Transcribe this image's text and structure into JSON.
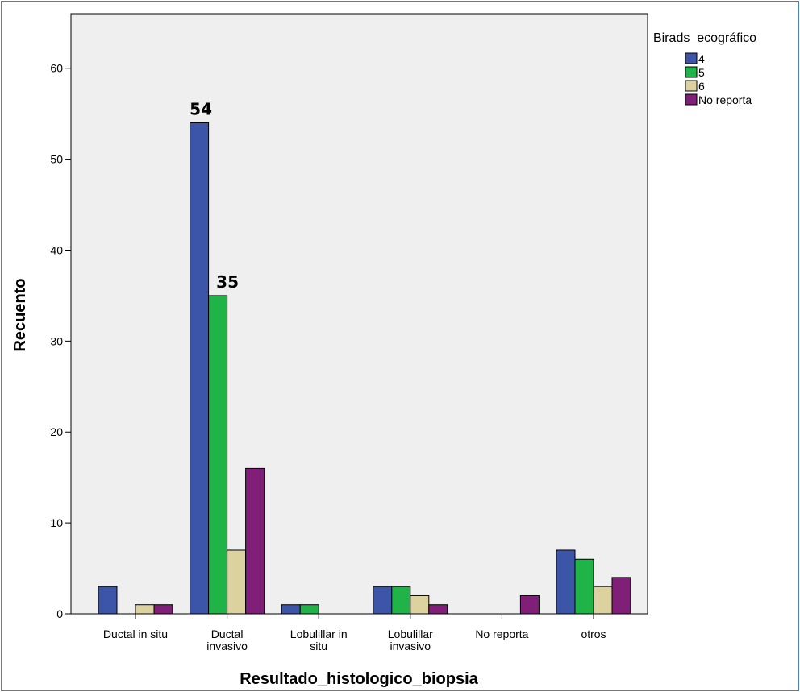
{
  "chart_data": {
    "type": "bar",
    "xlabel": "Resultado_histologico_biopsia",
    "ylabel": "Recuento",
    "ylim": [
      0,
      66
    ],
    "yticks": [
      0,
      10,
      20,
      30,
      40,
      50,
      60
    ],
    "grid": false,
    "legend": {
      "title": "Birads_ecográfico",
      "placement": "top-right"
    },
    "categories": [
      [
        "Ductal in situ"
      ],
      [
        "Ductal",
        "invasivo"
      ],
      [
        "Lobulillar in",
        "situ"
      ],
      [
        "Lobulillar",
        "invasivo"
      ],
      [
        "No reporta"
      ],
      [
        "otros"
      ]
    ],
    "series": [
      {
        "name": "4",
        "color": "#3d55a8",
        "values": [
          3,
          54,
          1,
          3,
          0,
          7
        ]
      },
      {
        "name": "5",
        "color": "#20b448",
        "values": [
          0,
          35,
          1,
          3,
          0,
          6
        ]
      },
      {
        "name": "6",
        "color": "#dcd2a0",
        "values": [
          1,
          7,
          0,
          2,
          0,
          3
        ]
      },
      {
        "name": "No reporta",
        "color": "#7f1f78",
        "values": [
          1,
          16,
          0,
          1,
          2,
          4
        ]
      }
    ],
    "annotations": [
      {
        "text": "54",
        "category_index": 1,
        "series_index": 0,
        "value": 54
      },
      {
        "text": "35",
        "category_index": 1,
        "series_index": 1,
        "value": 35
      }
    ]
  }
}
